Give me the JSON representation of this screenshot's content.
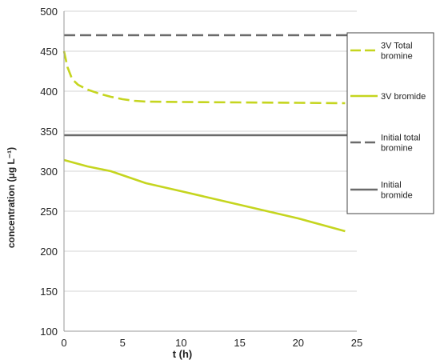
{
  "chart_data": {
    "type": "line",
    "title": "",
    "xlabel": "t (h)",
    "ylabel": "concentration (μg L⁻¹)",
    "xlim": [
      0,
      25
    ],
    "ylim": [
      100,
      500
    ],
    "xticks": [
      "0",
      "5",
      "10",
      "15",
      "20",
      "25"
    ],
    "yticks": [
      "100",
      "150",
      "200",
      "250",
      "300",
      "350",
      "400",
      "450",
      "500"
    ],
    "grid": "horizontal",
    "legend_position": "right",
    "series": [
      {
        "name": "3V Total bromine",
        "legend_lines": [
          "3V Total",
          "bromine"
        ],
        "color": "#c5d51f",
        "dash": "dashed",
        "x": [
          0,
          0.3,
          0.7,
          1.2,
          2,
          3,
          4,
          5,
          6,
          7,
          10,
          15,
          20,
          24
        ],
        "y": [
          450,
          430,
          415,
          408,
          402,
          397,
          393,
          390,
          388,
          387,
          386.5,
          386,
          385.5,
          385
        ]
      },
      {
        "name": "3V bromide",
        "legend_lines": [
          "3V bromide"
        ],
        "color": "#c5d51f",
        "dash": "solid",
        "x": [
          0,
          1,
          2,
          3,
          4,
          5,
          7,
          10,
          15,
          20,
          24
        ],
        "y": [
          314,
          310,
          306,
          303,
          300,
          295,
          285,
          275,
          258,
          241,
          225
        ]
      },
      {
        "name": "Initial total bromine",
        "legend_lines": [
          "Initial total",
          "bromine"
        ],
        "color": "#6b6b6b",
        "dash": "dashed",
        "x": [
          0,
          25
        ],
        "y": [
          470,
          470
        ]
      },
      {
        "name": "Initial bromide",
        "legend_lines": [
          "Initial",
          "bromide"
        ],
        "color": "#6b6b6b",
        "dash": "solid",
        "x": [
          0,
          25
        ],
        "y": [
          345,
          345
        ]
      }
    ]
  }
}
